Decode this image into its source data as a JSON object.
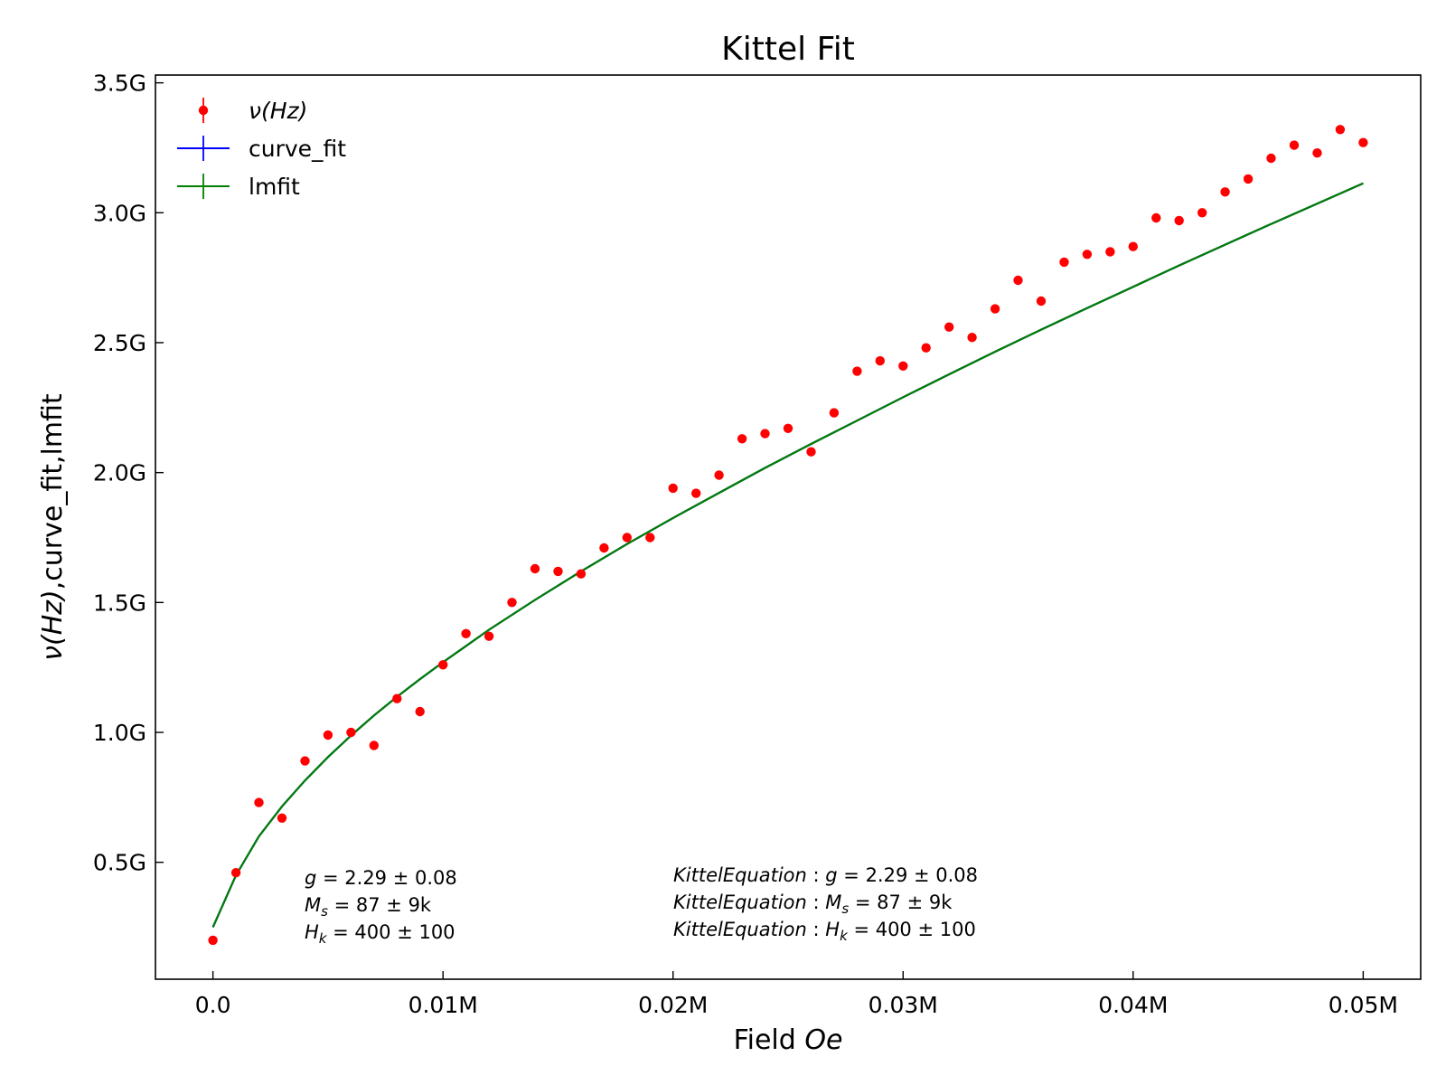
{
  "chart_data": {
    "type": "scatter",
    "title": "Kittel Fit",
    "xlabel": "Field ",
    "xlabel_italic": "Oe",
    "ylabel_italic": "ν(Hz)",
    "ylabel_rest": ",curve_fit,lmfit",
    "xlim": [
      -2500,
      52500
    ],
    "ylim": [
      50000000.0,
      3530000000.0
    ],
    "xticks": [
      {
        "value": 0,
        "label": "0.0"
      },
      {
        "value": 10000,
        "label": "0.01M"
      },
      {
        "value": 20000,
        "label": "0.02M"
      },
      {
        "value": 30000,
        "label": "0.03M"
      },
      {
        "value": 40000,
        "label": "0.04M"
      },
      {
        "value": 50000,
        "label": "0.05M"
      }
    ],
    "yticks": [
      {
        "value": 500000000,
        "label": "0.5G"
      },
      {
        "value": 1000000000,
        "label": "1.0G"
      },
      {
        "value": 1500000000,
        "label": "1.5G"
      },
      {
        "value": 2000000000,
        "label": "2.0G"
      },
      {
        "value": 2500000000,
        "label": "2.5G"
      },
      {
        "value": 3000000000,
        "label": "3.0G"
      },
      {
        "value": 3500000000,
        "label": "3.5G"
      }
    ],
    "grid": false,
    "legend_position": "top-left",
    "series": [
      {
        "name": "ν(Hz)",
        "kind": "scatter",
        "color": "#ff0000",
        "x": [
          0,
          1000,
          2000,
          3000,
          4000,
          5000,
          6000,
          7000,
          8000,
          9000,
          10000,
          11000,
          12000,
          13000,
          14000,
          15000,
          16000,
          17000,
          18000,
          19000,
          20000,
          21000,
          22000,
          23000,
          24000,
          25000,
          26000,
          27000,
          28000,
          29000,
          30000,
          31000,
          32000,
          33000,
          34000,
          35000,
          36000,
          37000,
          38000,
          39000,
          40000,
          41000,
          42000,
          43000,
          44000,
          45000,
          46000,
          47000,
          48000,
          49000,
          50000
        ],
        "y": [
          200000000,
          460000000,
          730000000,
          670000000,
          890000000,
          990000000,
          1000000000,
          950000000,
          1130000000,
          1080000000,
          1260000000,
          1380000000,
          1370000000,
          1500000000,
          1630000000,
          1620000000,
          1610000000,
          1710000000,
          1750000000,
          1750000000,
          1940000000,
          1920000000,
          1990000000,
          2130000000,
          2150000000,
          2170000000,
          2080000000,
          2230000000,
          2390000000,
          2430000000,
          2410000000,
          2480000000,
          2560000000,
          2520000000,
          2630000000,
          2740000000,
          2660000000,
          2810000000,
          2840000000,
          2850000000,
          2870000000,
          2980000000,
          2970000000,
          3000000000,
          3080000000,
          3130000000,
          3210000000,
          3260000000,
          3230000000,
          3320000000,
          3270000000
        ]
      },
      {
        "name": "curve_fit",
        "kind": "line",
        "color": "#0000ff",
        "x": [
          0,
          1000,
          2000,
          3000,
          4000,
          5000,
          6000,
          7000,
          8000,
          9000,
          10000,
          12000,
          14000,
          16000,
          18000,
          20000,
          22000,
          24000,
          26000,
          28000,
          30000,
          32000,
          34000,
          36000,
          38000,
          40000,
          42000,
          44000,
          46000,
          48000,
          50000
        ],
        "y": [
          250000000,
          450000000,
          600000000,
          715000000,
          815000000,
          905000000,
          988000000,
          1065000000,
          1137000000,
          1205000000,
          1270000000,
          1395000000,
          1510000000,
          1620000000,
          1725000000,
          1825000000,
          1922000000,
          2018000000,
          2110000000,
          2200000000,
          2290000000,
          2378000000,
          2465000000,
          2550000000,
          2633000000,
          2715000000,
          2797000000,
          2877000000,
          2957000000,
          3035000000,
          3113000000
        ]
      },
      {
        "name": "lmfit",
        "kind": "line",
        "color": "#007f00",
        "x": [
          0,
          1000,
          2000,
          3000,
          4000,
          5000,
          6000,
          7000,
          8000,
          9000,
          10000,
          12000,
          14000,
          16000,
          18000,
          20000,
          22000,
          24000,
          26000,
          28000,
          30000,
          32000,
          34000,
          36000,
          38000,
          40000,
          42000,
          44000,
          46000,
          48000,
          50000
        ],
        "y": [
          250000000,
          450000000,
          600000000,
          715000000,
          815000000,
          905000000,
          988000000,
          1065000000,
          1137000000,
          1205000000,
          1270000000,
          1395000000,
          1510000000,
          1620000000,
          1725000000,
          1825000000,
          1922000000,
          2018000000,
          2110000000,
          2200000000,
          2290000000,
          2378000000,
          2465000000,
          2550000000,
          2633000000,
          2715000000,
          2797000000,
          2877000000,
          2957000000,
          3035000000,
          3113000000
        ]
      }
    ],
    "annotations_left": [
      {
        "var": "g",
        "sub": "",
        "text": " = 2.29 ± 0.08"
      },
      {
        "var": "M",
        "sub": "s",
        "text": " = 87 ± 9k"
      },
      {
        "var": "H",
        "sub": "k",
        "text": " = 400 ± 100"
      }
    ],
    "annotations_right_prefix": "KittelEquation",
    "annotations_right": [
      {
        "var": "g",
        "sub": "",
        "text": " = 2.29 ± 0.08"
      },
      {
        "var": "M",
        "sub": "s",
        "text": " = 87 ± 9k"
      },
      {
        "var": "H",
        "sub": "k",
        "text": " = 400 ± 100"
      }
    ]
  }
}
